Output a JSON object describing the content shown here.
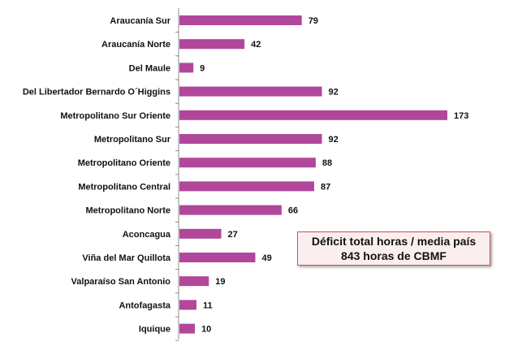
{
  "colors": {
    "bar": "#b1479a",
    "axis": "#8c8c8c",
    "note_border": "#c9555e",
    "note_fill": "#fbeeee"
  },
  "note": {
    "line1": "Déficit total horas / media país",
    "line2": "843 horas de CBMF"
  },
  "chart_data": {
    "type": "bar",
    "orientation": "horizontal",
    "categories": [
      "Araucanía Sur",
      "Araucanía Norte",
      "Del Maule",
      "Del Libertador Bernardo O´Higgins",
      "Metropolitano Sur Oriente",
      "Metropolitano Sur",
      "Metropolitano Oriente",
      "Metropolitano Central",
      "Metropolitano Norte",
      "Aconcagua",
      "Viña del Mar Quillota",
      "Valparaíso San Antonio",
      "Antofagasta",
      "Iquique"
    ],
    "values": [
      79,
      42,
      9,
      92,
      173,
      92,
      88,
      87,
      66,
      27,
      49,
      19,
      11,
      10
    ],
    "xlim": [
      0,
      180
    ],
    "grid": false,
    "title": "",
    "xlabel": "",
    "ylabel": ""
  }
}
